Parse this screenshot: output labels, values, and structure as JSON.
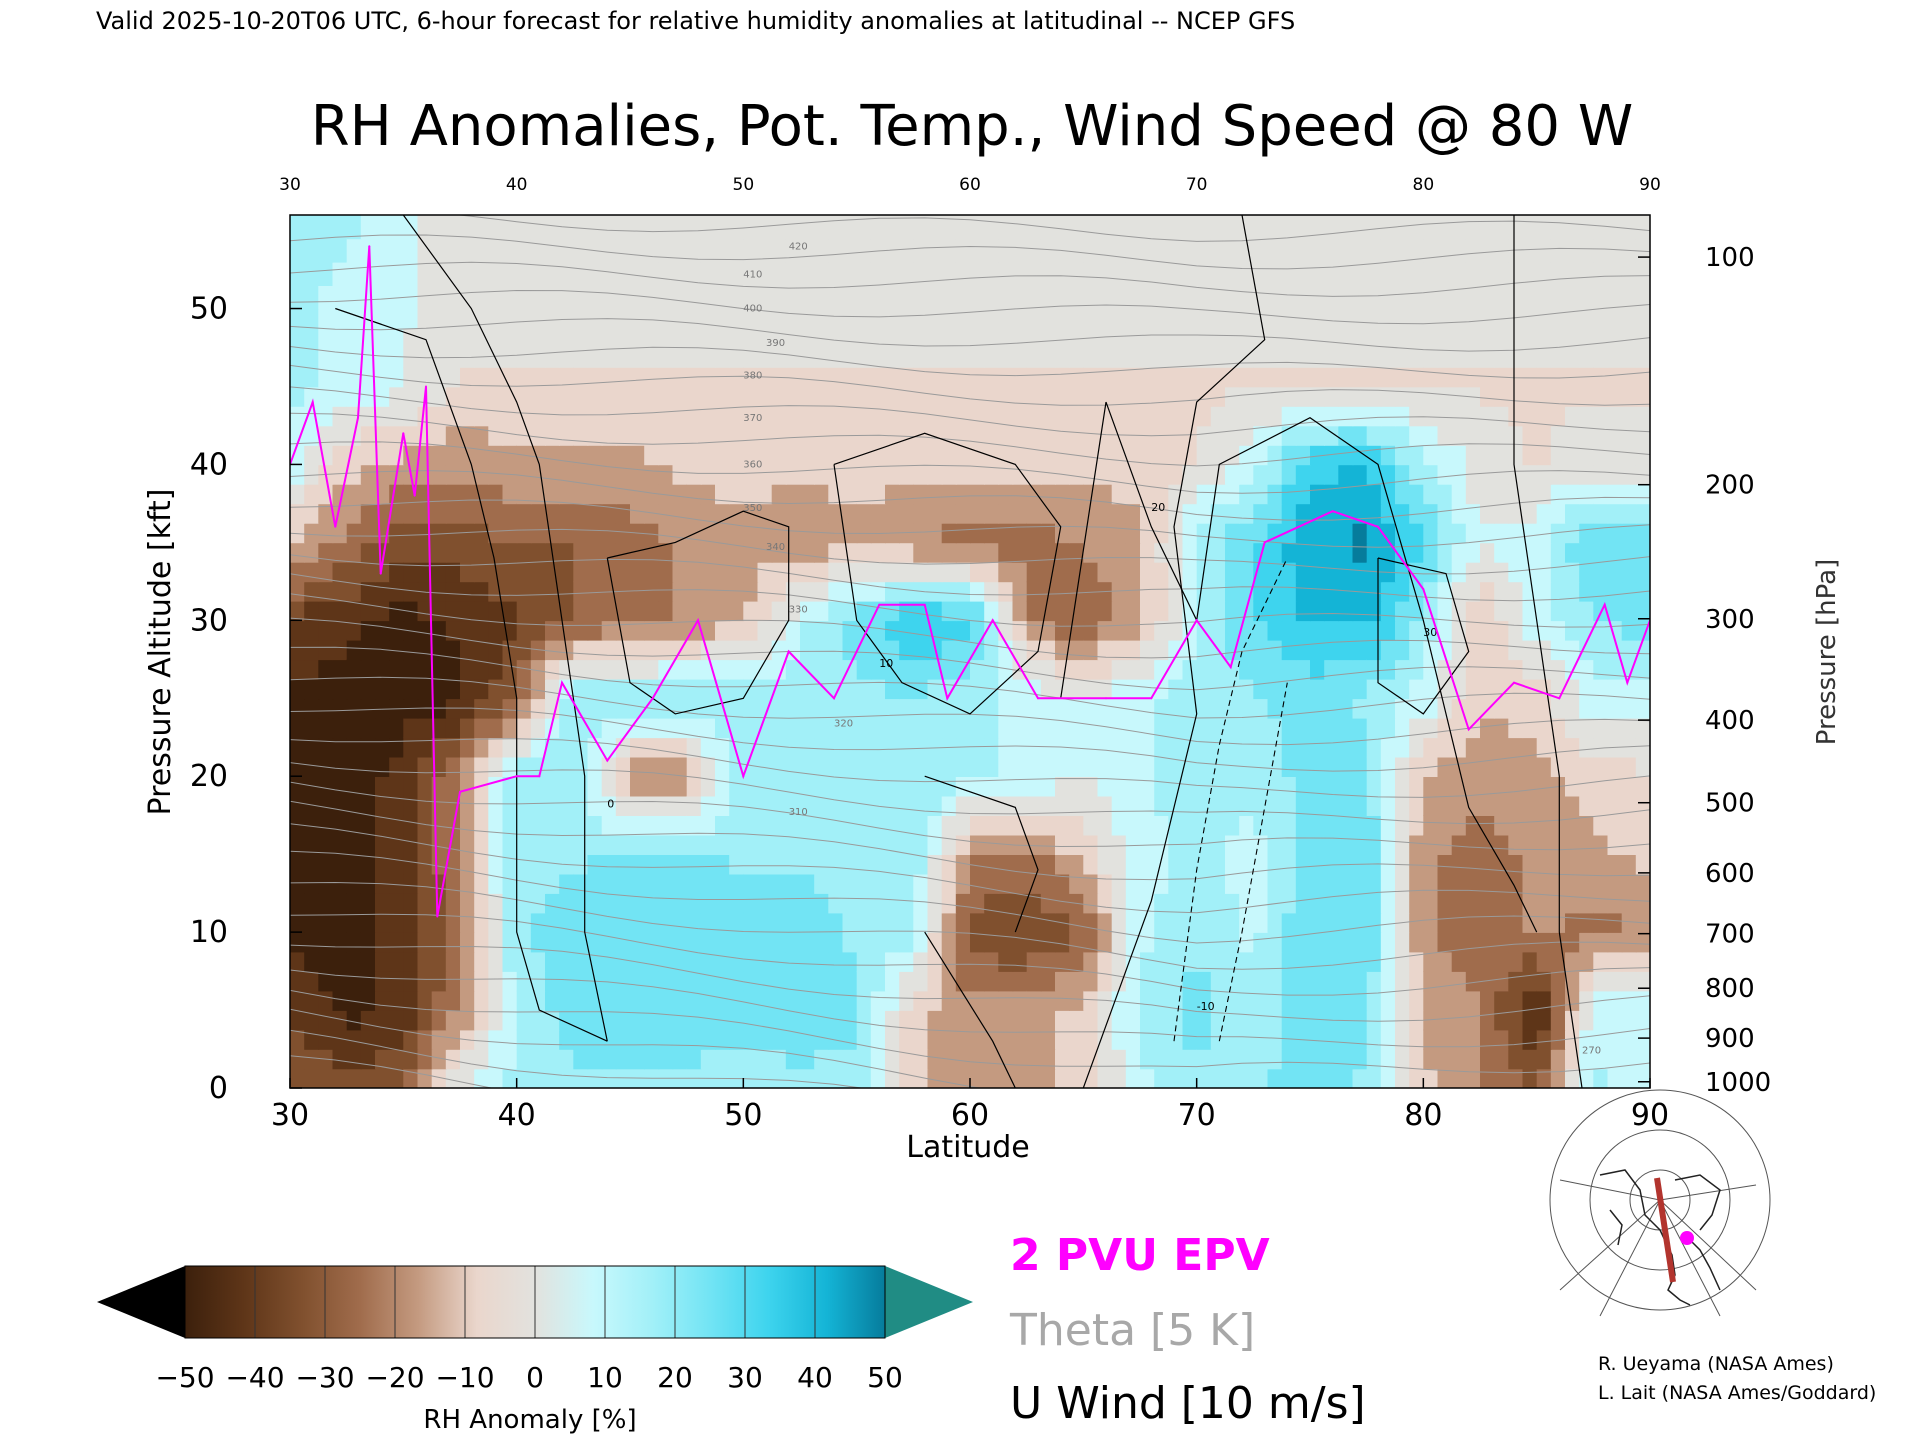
{
  "header": "Valid 2025-10-20T06 UTC, 6-hour forecast for relative humidity anomalies at latitudinal -- NCEP GFS",
  "credits": [
    "R. Ueyama (NASA Ames)",
    "L. Lait (NASA Ames/Goddard)"
  ],
  "chart_data": {
    "type": "heatmap",
    "title": "RH Anomalies, Pot. Temp., Wind Speed @ 80 W",
    "xlabel": "Latitude",
    "ylabel": "Pressure Altitude [kft]",
    "y2label": "Pressure [hPa]",
    "xlim": [
      30,
      90
    ],
    "ylim": [
      0,
      56
    ],
    "x_ticks": [
      30,
      40,
      50,
      60,
      70,
      80,
      90
    ],
    "y_ticks": [
      0,
      10,
      20,
      30,
      40,
      50
    ],
    "pressure_ticks": [
      {
        "label": "100",
        "kft": 53.3
      },
      {
        "label": "200",
        "kft": 38.7
      },
      {
        "label": "300",
        "kft": 30.1
      },
      {
        "label": "400",
        "kft": 23.6
      },
      {
        "label": "500",
        "kft": 18.3
      },
      {
        "label": "600",
        "kft": 13.8
      },
      {
        "label": "700",
        "kft": 9.9
      },
      {
        "label": "800",
        "kft": 6.4
      },
      {
        "label": "900",
        "kft": 3.2
      },
      {
        "label": "1000",
        "kft": 0.4
      }
    ],
    "grid": false,
    "legend": [
      "2 PVU EPV",
      "Theta [5 K]",
      "U Wind [10 m/s]"
    ],
    "legend_colors": [
      "#ff00ff",
      "#9a9a9a",
      "#000000"
    ],
    "colorbar": {
      "label": "RH Anomaly [%]",
      "ticks": [
        "−50",
        "−40",
        "−30",
        "−20",
        "−10",
        "0",
        "10",
        "20",
        "30",
        "40",
        "50"
      ],
      "colors": [
        "#000000",
        "#3c200c",
        "#5e3518",
        "#80502e",
        "#a06c4c",
        "#c49a80",
        "#ead6cc",
        "#e2e2de",
        "#c8f8fc",
        "#a2f0f8",
        "#72e4f4",
        "#3ed4ee",
        "#14b4d6",
        "#067c9c",
        "#208c84"
      ]
    },
    "rh_anomaly_grid": {
      "lats": [
        30,
        32.5,
        35,
        37.5,
        40,
        42.5,
        45,
        47.5,
        50,
        52.5,
        55,
        57.5,
        60,
        62.5,
        65,
        67.5,
        70,
        72.5,
        75,
        77.5,
        80,
        82.5,
        85,
        87.5,
        90
      ],
      "kfts": [
        0,
        5,
        10,
        15,
        20,
        25,
        30,
        35,
        40,
        45,
        50,
        56
      ],
      "rows": [
        [
          -30,
          -35,
          -30,
          5,
          15,
          20,
          20,
          20,
          15,
          20,
          15,
          -10,
          -20,
          -15,
          -10,
          10,
          20,
          20,
          25,
          20,
          -10,
          -20,
          -30,
          15,
          10
        ],
        [
          -40,
          -50,
          -45,
          -20,
          15,
          25,
          25,
          25,
          25,
          25,
          25,
          -10,
          -20,
          -15,
          -10,
          15,
          25,
          15,
          30,
          25,
          -15,
          -20,
          -50,
          10,
          10
        ],
        [
          -50,
          -50,
          -45,
          -25,
          20,
          25,
          25,
          25,
          25,
          25,
          20,
          15,
          -35,
          -40,
          -30,
          10,
          20,
          10,
          30,
          30,
          -20,
          -30,
          -20,
          -25,
          -20
        ],
        [
          -50,
          -50,
          -45,
          -20,
          20,
          20,
          25,
          25,
          20,
          20,
          20,
          20,
          -20,
          -25,
          -10,
          10,
          15,
          10,
          25,
          30,
          -20,
          -25,
          -20,
          -15,
          -10
        ],
        [
          -50,
          -50,
          -45,
          -20,
          20,
          20,
          -20,
          -20,
          20,
          20,
          20,
          20,
          15,
          10,
          5,
          10,
          20,
          15,
          25,
          25,
          -15,
          -20,
          -15,
          -10,
          -5
        ],
        [
          -50,
          -50,
          -50,
          -50,
          -30,
          20,
          20,
          20,
          20,
          20,
          20,
          20,
          15,
          10,
          5,
          10,
          20,
          20,
          25,
          20,
          10,
          -10,
          -10,
          10,
          10
        ],
        [
          -40,
          -45,
          -50,
          -45,
          -40,
          -30,
          -25,
          -20,
          -15,
          10,
          25,
          40,
          35,
          -20,
          -30,
          -15,
          10,
          30,
          40,
          40,
          20,
          -15,
          10,
          20,
          25
        ],
        [
          -10,
          -25,
          -35,
          -35,
          -30,
          -30,
          -25,
          -20,
          -15,
          -20,
          -15,
          -20,
          -25,
          -25,
          -20,
          -15,
          15,
          30,
          45,
          50,
          30,
          5,
          10,
          30,
          30
        ],
        [
          10,
          -10,
          -15,
          -20,
          -15,
          -15,
          -15,
          -10,
          -10,
          -10,
          -10,
          -10,
          -10,
          -10,
          -10,
          -10,
          -5,
          10,
          35,
          40,
          15,
          0,
          -5,
          0,
          0
        ],
        [
          15,
          10,
          5,
          -5,
          -5,
          -5,
          -5,
          -5,
          -5,
          -5,
          -5,
          -5,
          -5,
          -5,
          -5,
          -5,
          -5,
          -5,
          -5,
          -5,
          -5,
          -5,
          -5,
          -5,
          -5
        ],
        [
          15,
          10,
          5,
          0,
          0,
          0,
          0,
          0,
          0,
          0,
          0,
          0,
          0,
          0,
          0,
          0,
          0,
          0,
          0,
          0,
          0,
          0,
          0,
          0,
          0
        ],
        [
          20,
          15,
          5,
          0,
          0,
          0,
          0,
          0,
          0,
          0,
          0,
          0,
          0,
          0,
          0,
          0,
          0,
          0,
          0,
          0,
          0,
          0,
          0,
          0,
          0
        ]
      ]
    },
    "theta_contour_labels": [
      "270",
      "310",
      "320",
      "330",
      "340",
      "350",
      "360",
      "370",
      "380",
      "390",
      "400",
      "410",
      "420"
    ],
    "wind_contour_labels": [
      "0",
      "10",
      "20",
      "30",
      "-10"
    ],
    "epv_2pvu_line": [
      {
        "lat": 30,
        "kft": 40
      },
      {
        "lat": 31,
        "kft": 44
      },
      {
        "lat": 32,
        "kft": 36
      },
      {
        "lat": 33,
        "kft": 43
      },
      {
        "lat": 33.5,
        "kft": 54
      },
      {
        "lat": 34,
        "kft": 33
      },
      {
        "lat": 35,
        "kft": 42
      },
      {
        "lat": 35.5,
        "kft": 38
      },
      {
        "lat": 36,
        "kft": 45
      },
      {
        "lat": 36.5,
        "kft": 11
      },
      {
        "lat": 37.5,
        "kft": 19
      },
      {
        "lat": 40,
        "kft": 20
      },
      {
        "lat": 41,
        "kft": 20
      },
      {
        "lat": 42,
        "kft": 26
      },
      {
        "lat": 44,
        "kft": 21
      },
      {
        "lat": 46,
        "kft": 25
      },
      {
        "lat": 48,
        "kft": 30
      },
      {
        "lat": 50,
        "kft": 20
      },
      {
        "lat": 52,
        "kft": 28
      },
      {
        "lat": 54,
        "kft": 25
      },
      {
        "lat": 56,
        "kft": 31
      },
      {
        "lat": 58,
        "kft": 31
      },
      {
        "lat": 59,
        "kft": 25
      },
      {
        "lat": 61,
        "kft": 30
      },
      {
        "lat": 63,
        "kft": 25
      },
      {
        "lat": 66,
        "kft": 25
      },
      {
        "lat": 68,
        "kft": 25
      },
      {
        "lat": 70,
        "kft": 30
      },
      {
        "lat": 71.5,
        "kft": 27
      },
      {
        "lat": 73,
        "kft": 35
      },
      {
        "lat": 76,
        "kft": 37
      },
      {
        "lat": 78,
        "kft": 36
      },
      {
        "lat": 80,
        "kft": 32
      },
      {
        "lat": 82,
        "kft": 23
      },
      {
        "lat": 84,
        "kft": 26
      },
      {
        "lat": 86,
        "kft": 25
      },
      {
        "lat": 88,
        "kft": 31
      },
      {
        "lat": 89,
        "kft": 26
      },
      {
        "lat": 90,
        "kft": 30
      }
    ]
  }
}
